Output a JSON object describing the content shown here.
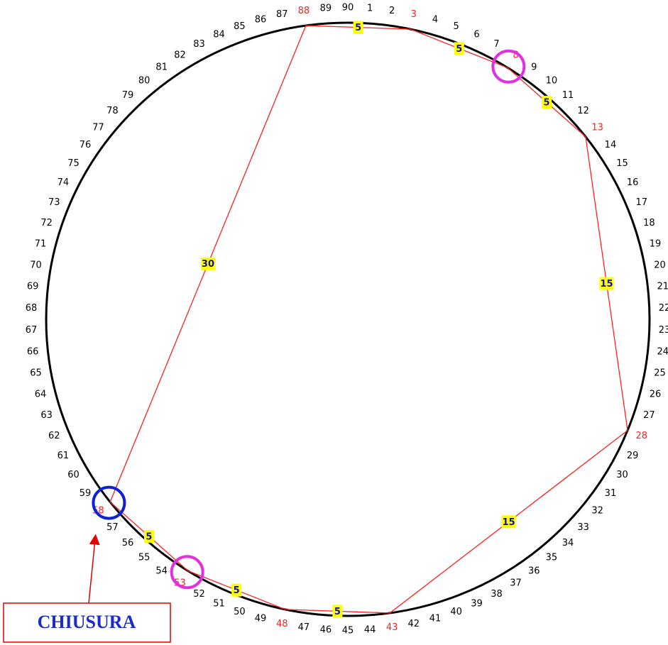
{
  "ring": {
    "labels": [
      1,
      2,
      3,
      4,
      5,
      6,
      7,
      8,
      9,
      10,
      11,
      12,
      13,
      14,
      15,
      16,
      17,
      18,
      19,
      20,
      21,
      22,
      23,
      24,
      25,
      26,
      27,
      28,
      29,
      30,
      31,
      32,
      33,
      34,
      35,
      36,
      37,
      38,
      39,
      40,
      41,
      42,
      43,
      44,
      45,
      46,
      47,
      48,
      49,
      50,
      51,
      52,
      53,
      54,
      55,
      56,
      57,
      58,
      59,
      60,
      61,
      62,
      63,
      64,
      65,
      66,
      67,
      68,
      69,
      70,
      71,
      72,
      73,
      74,
      75,
      76,
      77,
      78,
      79,
      80,
      81,
      82,
      83,
      84,
      85,
      86,
      87,
      88,
      89,
      90
    ],
    "route": [
      88,
      3,
      8,
      13,
      28,
      43,
      48,
      53,
      58
    ],
    "route_gaps": [
      5,
      5,
      5,
      15,
      15,
      5,
      5,
      5,
      30
    ],
    "highlights": [
      {
        "number": 8,
        "color": "#e030e0"
      },
      {
        "number": 53,
        "color": "#e030e0"
      },
      {
        "number": 58,
        "color": "#1020d0"
      }
    ]
  },
  "callout": {
    "text": "CHIUSURA"
  }
}
